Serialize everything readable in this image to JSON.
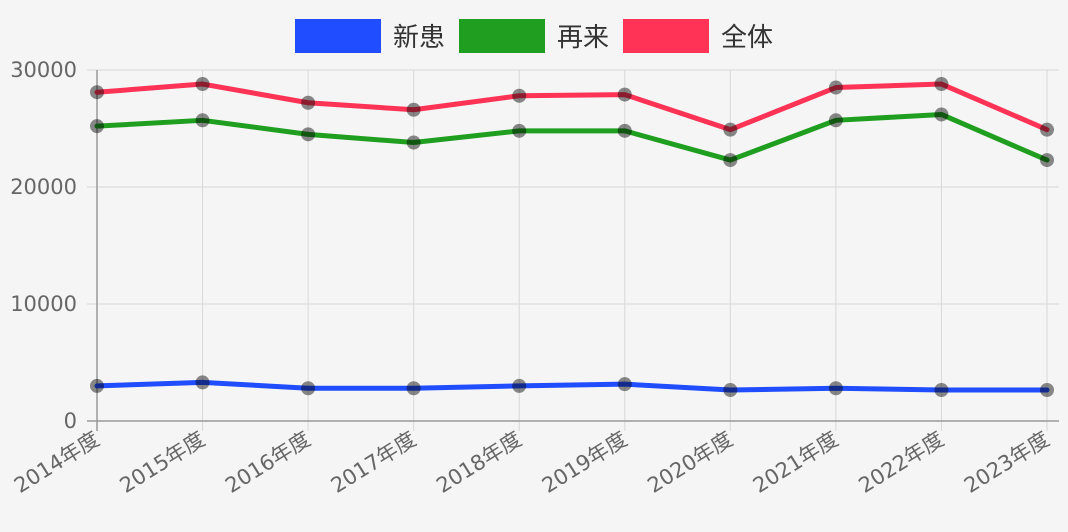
{
  "chart_data": {
    "type": "line",
    "categories": [
      "2014年度",
      "2015年度",
      "2016年度",
      "2017年度",
      "2018年度",
      "2019年度",
      "2020年度",
      "2021年度",
      "2022年度",
      "2023年度"
    ],
    "series": [
      {
        "name": "新患",
        "color": "#1f4dff",
        "values": [
          3000,
          3300,
          2800,
          2800,
          3000,
          3150,
          2650,
          2800,
          2650,
          2650
        ]
      },
      {
        "name": "再来",
        "color": "#1f9e1f",
        "values": [
          25200,
          25700,
          24500,
          23800,
          24800,
          24800,
          22300,
          25700,
          26200,
          22300
        ]
      },
      {
        "name": "全体",
        "color": "#ff3355",
        "values": [
          28100,
          28800,
          27200,
          26600,
          27800,
          27900,
          24900,
          28500,
          28800,
          24900
        ]
      }
    ],
    "yticks": [
      "0",
      "10000",
      "20000",
      "30000"
    ],
    "ylim": [
      0,
      30000
    ],
    "title": "",
    "xlabel": "",
    "ylabel": "",
    "grid": true,
    "legend": "top-center"
  }
}
